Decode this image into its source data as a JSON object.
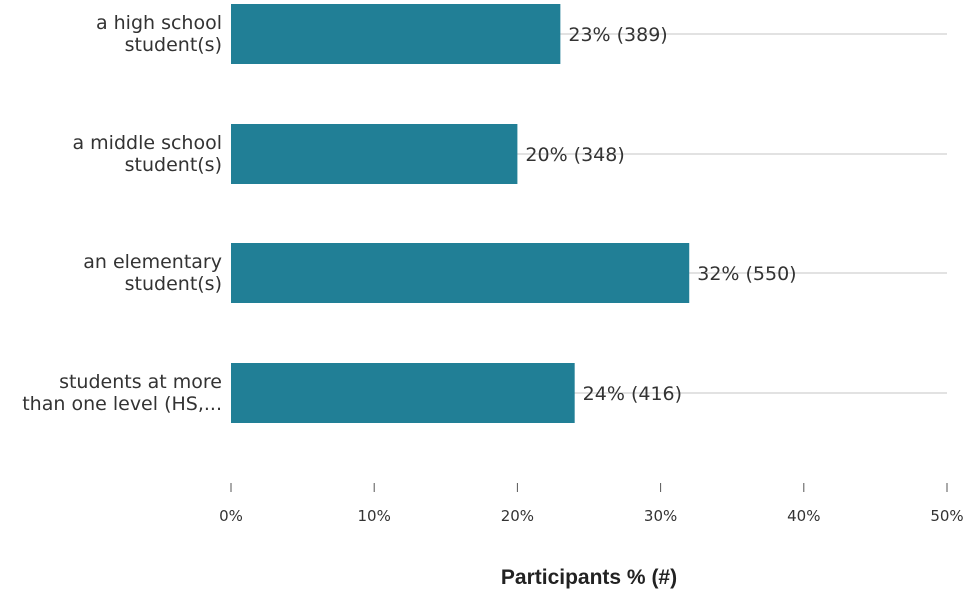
{
  "chart_data": {
    "type": "bar",
    "orientation": "horizontal",
    "categories": [
      [
        "a high school",
        "student(s)"
      ],
      [
        "a middle school",
        "student(s)"
      ],
      [
        "an elementary",
        "student(s)"
      ],
      [
        "students at more",
        "than one level (HS,..."
      ]
    ],
    "values": [
      23,
      20,
      32,
      24
    ],
    "value_labels": [
      "23% (389)",
      "20% (348)",
      "32% (550)",
      "24% (416)"
    ],
    "xlabel": "Participants % (#)",
    "xlim": [
      0,
      50
    ],
    "ticks": [
      0,
      10,
      20,
      30,
      40,
      50
    ],
    "tick_labels": [
      "0%",
      "10%",
      "20%",
      "30%",
      "40%",
      "50%"
    ],
    "grid": true,
    "bar_color": "#217f96",
    "gridline_color": "#d9d9d9"
  }
}
